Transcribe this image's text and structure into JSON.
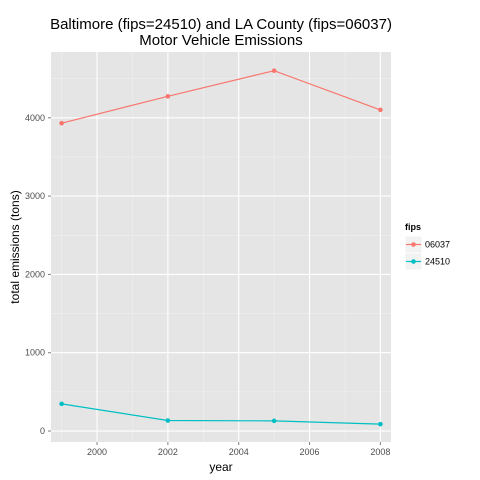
{
  "chart_data": {
    "type": "line",
    "title_lines": [
      "Baltimore (fips=24510) and LA County (fips=06037)",
      "Motor Vehicle Emissions"
    ],
    "xlabel": "year",
    "ylabel": "total emissions (tons)",
    "x": [
      1999,
      2002,
      2005,
      2008
    ],
    "xlim": [
      1998.7,
      2008.3
    ],
    "ylim": [
      -140,
      4840
    ],
    "x_ticks": [
      2000,
      2002,
      2004,
      2006,
      2008
    ],
    "y_ticks": [
      0,
      1000,
      2000,
      3000,
      4000
    ],
    "grid": true,
    "legend_placement": "right",
    "legend_title": "fips",
    "series": [
      {
        "name": "06037",
        "color": "#F8766D",
        "values": [
          3931,
          4274,
          4601,
          4101
        ]
      },
      {
        "name": "24510",
        "color": "#00BFC4",
        "values": [
          347,
          134,
          130,
          88
        ]
      }
    ]
  },
  "colors": {
    "panel_background": "#e5e5e5",
    "grid_major": "#ffffff",
    "grid_minor": "#f2f2f2",
    "tick_text": "#4d4d4d"
  }
}
